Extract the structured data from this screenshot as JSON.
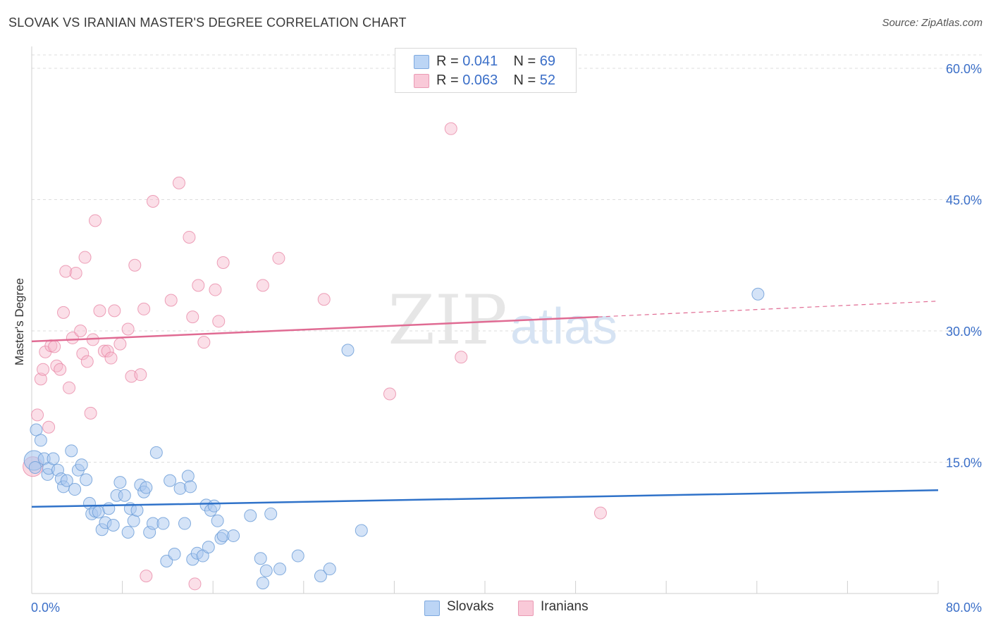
{
  "title": "SLOVAK VS IRANIAN MASTER'S DEGREE CORRELATION CHART",
  "source": "Source: ZipAtlas.com",
  "watermark": {
    "zip": "ZIP",
    "atlas": "atlas"
  },
  "legend": {
    "rows": [
      {
        "r_label": "R =",
        "r_value": "0.041",
        "n_label": "N =",
        "n_value": "69"
      },
      {
        "r_label": "R =",
        "r_value": "0.063",
        "n_label": "N =",
        "n_value": "52"
      }
    ]
  },
  "bottom_legend": {
    "slovaks": "Slovaks",
    "iranians": "Iranians"
  },
  "colors": {
    "blue_fill": "#a9c8f0",
    "blue_stroke": "#6f9fd8",
    "blue_line": "#2f72c9",
    "pink_fill": "#f6b8cb",
    "pink_stroke": "#e88aa8",
    "pink_line": "#e06b93",
    "axis_label": "#3b6fc8",
    "grid": "#dddddd"
  },
  "chart_data": {
    "type": "scatter",
    "title": "SLOVAK VS IRANIAN MASTER'S DEGREE CORRELATION CHART",
    "xlabel": "",
    "ylabel": "Master's Degree",
    "xlim": [
      0,
      80
    ],
    "ylim": [
      0,
      60
    ],
    "x_tick_labels": [
      "0.0%",
      "80.0%"
    ],
    "y_ticks": [
      15,
      30,
      45,
      60
    ],
    "y_tick_labels": [
      "15.0%",
      "30.0%",
      "45.0%",
      "60.0%"
    ],
    "grid": true,
    "series": [
      {
        "name": "Slovaks",
        "R": 0.041,
        "N": 69,
        "trend": {
          "x0": 0,
          "y0": 9.9,
          "x1": 80,
          "y1": 11.8
        },
        "points": [
          [
            0.2,
            15.2
          ],
          [
            0.3,
            14.4
          ],
          [
            0.4,
            18.7
          ],
          [
            0.8,
            17.5
          ],
          [
            1.1,
            15.4
          ],
          [
            1.4,
            13.6
          ],
          [
            1.5,
            14.3
          ],
          [
            1.9,
            15.4
          ],
          [
            2.3,
            14.1
          ],
          [
            2.6,
            13.1
          ],
          [
            2.8,
            12.2
          ],
          [
            3.1,
            12.9
          ],
          [
            3.5,
            16.3
          ],
          [
            3.8,
            11.9
          ],
          [
            4.1,
            14.1
          ],
          [
            4.4,
            14.7
          ],
          [
            4.8,
            13.0
          ],
          [
            5.1,
            10.3
          ],
          [
            5.3,
            9.1
          ],
          [
            5.6,
            9.4
          ],
          [
            5.9,
            9.3
          ],
          [
            6.2,
            7.3
          ],
          [
            6.5,
            8.1
          ],
          [
            6.8,
            9.7
          ],
          [
            7.2,
            7.8
          ],
          [
            7.5,
            11.2
          ],
          [
            7.8,
            12.7
          ],
          [
            8.2,
            11.2
          ],
          [
            8.5,
            7.0
          ],
          [
            8.7,
            9.7
          ],
          [
            9.0,
            8.3
          ],
          [
            9.3,
            9.5
          ],
          [
            9.6,
            12.4
          ],
          [
            9.9,
            11.6
          ],
          [
            10.1,
            12.1
          ],
          [
            10.4,
            7.0
          ],
          [
            10.7,
            8.0
          ],
          [
            11.0,
            16.1
          ],
          [
            11.6,
            8.0
          ],
          [
            11.9,
            3.7
          ],
          [
            12.2,
            12.9
          ],
          [
            12.6,
            4.5
          ],
          [
            13.1,
            12.0
          ],
          [
            13.5,
            8.0
          ],
          [
            13.8,
            13.4
          ],
          [
            14.0,
            12.2
          ],
          [
            14.2,
            3.9
          ],
          [
            14.6,
            4.6
          ],
          [
            15.1,
            4.3
          ],
          [
            15.4,
            10.1
          ],
          [
            15.6,
            5.3
          ],
          [
            15.8,
            9.5
          ],
          [
            16.1,
            10.0
          ],
          [
            16.4,
            8.3
          ],
          [
            16.7,
            6.3
          ],
          [
            16.9,
            6.6
          ],
          [
            17.8,
            6.6
          ],
          [
            19.3,
            8.9
          ],
          [
            20.2,
            4.0
          ],
          [
            20.4,
            1.2
          ],
          [
            20.7,
            2.6
          ],
          [
            21.1,
            9.1
          ],
          [
            21.9,
            2.8
          ],
          [
            23.5,
            4.3
          ],
          [
            25.5,
            2.0
          ],
          [
            26.3,
            2.8
          ],
          [
            27.9,
            27.8
          ],
          [
            29.1,
            7.2
          ],
          [
            64.1,
            34.2
          ]
        ]
      },
      {
        "name": "Iranians",
        "R": 0.063,
        "N": 52,
        "trend": {
          "x0": 0,
          "y0": 28.8,
          "x1": 50,
          "y1": 31.6,
          "dash_x1": 80,
          "dash_y1": 33.4
        },
        "points": [
          [
            0.1,
            14.5
          ],
          [
            0.5,
            20.4
          ],
          [
            0.8,
            24.5
          ],
          [
            1.0,
            25.6
          ],
          [
            1.2,
            27.6
          ],
          [
            1.5,
            19.0
          ],
          [
            1.7,
            28.3
          ],
          [
            2.0,
            28.2
          ],
          [
            2.2,
            26.0
          ],
          [
            2.5,
            25.6
          ],
          [
            2.8,
            32.1
          ],
          [
            3.0,
            36.8
          ],
          [
            3.3,
            23.5
          ],
          [
            3.6,
            29.2
          ],
          [
            3.9,
            36.6
          ],
          [
            4.3,
            30.0
          ],
          [
            4.5,
            27.4
          ],
          [
            4.7,
            38.4
          ],
          [
            4.9,
            26.5
          ],
          [
            5.2,
            20.6
          ],
          [
            5.4,
            29.0
          ],
          [
            5.6,
            42.6
          ],
          [
            6.0,
            32.3
          ],
          [
            6.4,
            27.7
          ],
          [
            6.7,
            27.7
          ],
          [
            7.0,
            26.9
          ],
          [
            7.3,
            32.3
          ],
          [
            7.8,
            28.5
          ],
          [
            8.5,
            30.2
          ],
          [
            8.8,
            24.8
          ],
          [
            9.1,
            37.5
          ],
          [
            9.6,
            25.0
          ],
          [
            9.9,
            32.5
          ],
          [
            10.1,
            2.0
          ],
          [
            10.7,
            44.8
          ],
          [
            12.3,
            33.5
          ],
          [
            13.0,
            46.9
          ],
          [
            13.9,
            40.7
          ],
          [
            14.2,
            31.6
          ],
          [
            14.4,
            1.1
          ],
          [
            14.7,
            35.2
          ],
          [
            15.2,
            28.7
          ],
          [
            16.2,
            34.7
          ],
          [
            16.5,
            31.1
          ],
          [
            16.9,
            37.8
          ],
          [
            20.4,
            35.2
          ],
          [
            21.8,
            38.3
          ],
          [
            25.8,
            33.6
          ],
          [
            31.6,
            22.8
          ],
          [
            37.0,
            53.1
          ],
          [
            37.9,
            27.0
          ],
          [
            50.2,
            9.2
          ]
        ]
      }
    ]
  }
}
